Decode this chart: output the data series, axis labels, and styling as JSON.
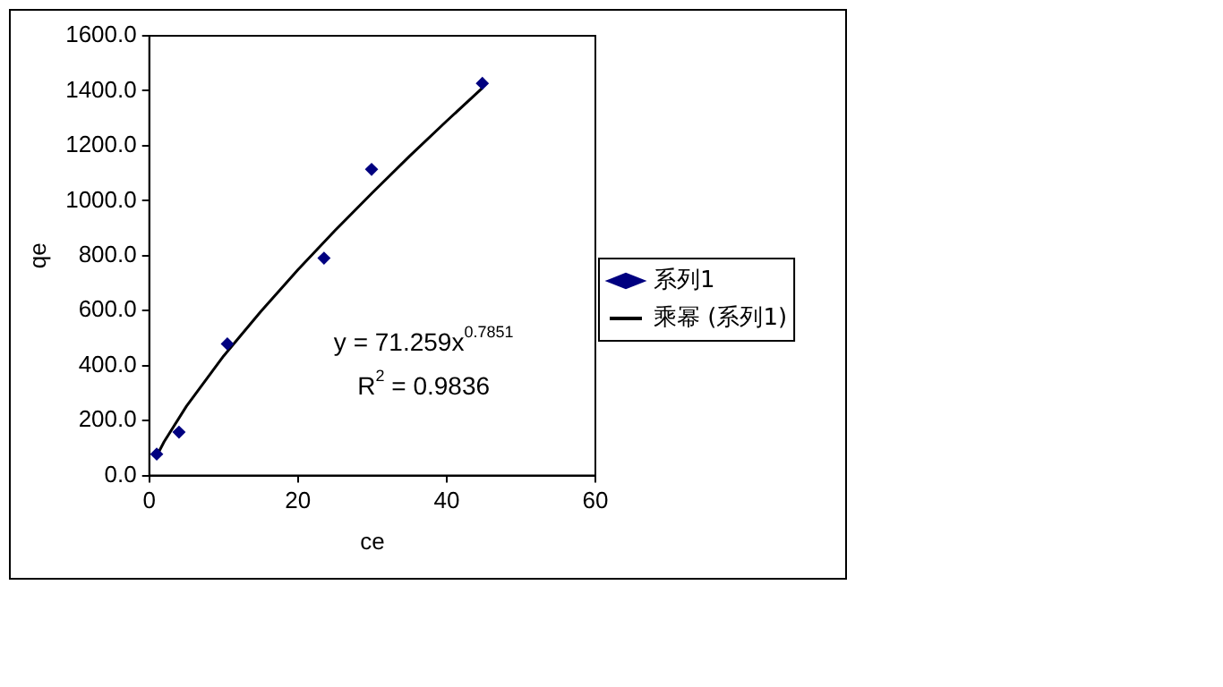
{
  "chart_data": {
    "type": "scatter",
    "xlabel": "ce",
    "ylabel": "qe",
    "xlim": [
      0,
      60
    ],
    "xticks": [
      0,
      20,
      40,
      60
    ],
    "ylim": [
      0,
      1600
    ],
    "yticks": [
      {
        "value": 0,
        "label": "0.0"
      },
      {
        "value": 200,
        "label": "200.0"
      },
      {
        "value": 400,
        "label": "400.0"
      },
      {
        "value": 600,
        "label": "600.0"
      },
      {
        "value": 800,
        "label": "800.0"
      },
      {
        "value": 1000,
        "label": "1000.0"
      },
      {
        "value": 1200,
        "label": "1200.0"
      },
      {
        "value": 1400,
        "label": "1400.0"
      },
      {
        "value": 1600,
        "label": "1600.0"
      }
    ],
    "series": [
      {
        "name": "系列1",
        "type": "scatter",
        "color": "#000080",
        "marker": "diamond",
        "x": [
          1.0,
          4.0,
          10.5,
          23.5,
          29.9,
          44.8
        ],
        "values": [
          78,
          158,
          479,
          791,
          1114,
          1427
        ]
      },
      {
        "name": "乘幂 (系列1)",
        "type": "line",
        "color": "#000000",
        "marker": "none",
        "line_style": "solid",
        "x": [
          1,
          2,
          5,
          10,
          15,
          20,
          25,
          30,
          35,
          40,
          44.8
        ],
        "values": [
          71,
          123,
          252,
          435,
          597,
          749,
          892,
          1029,
          1162,
          1290,
          1410
        ]
      }
    ],
    "annotations": [
      "y = 71.259x$^{0.7851}$",
      "R$^{2}$ = 0.9836"
    ],
    "grid": false,
    "legend": "right"
  }
}
